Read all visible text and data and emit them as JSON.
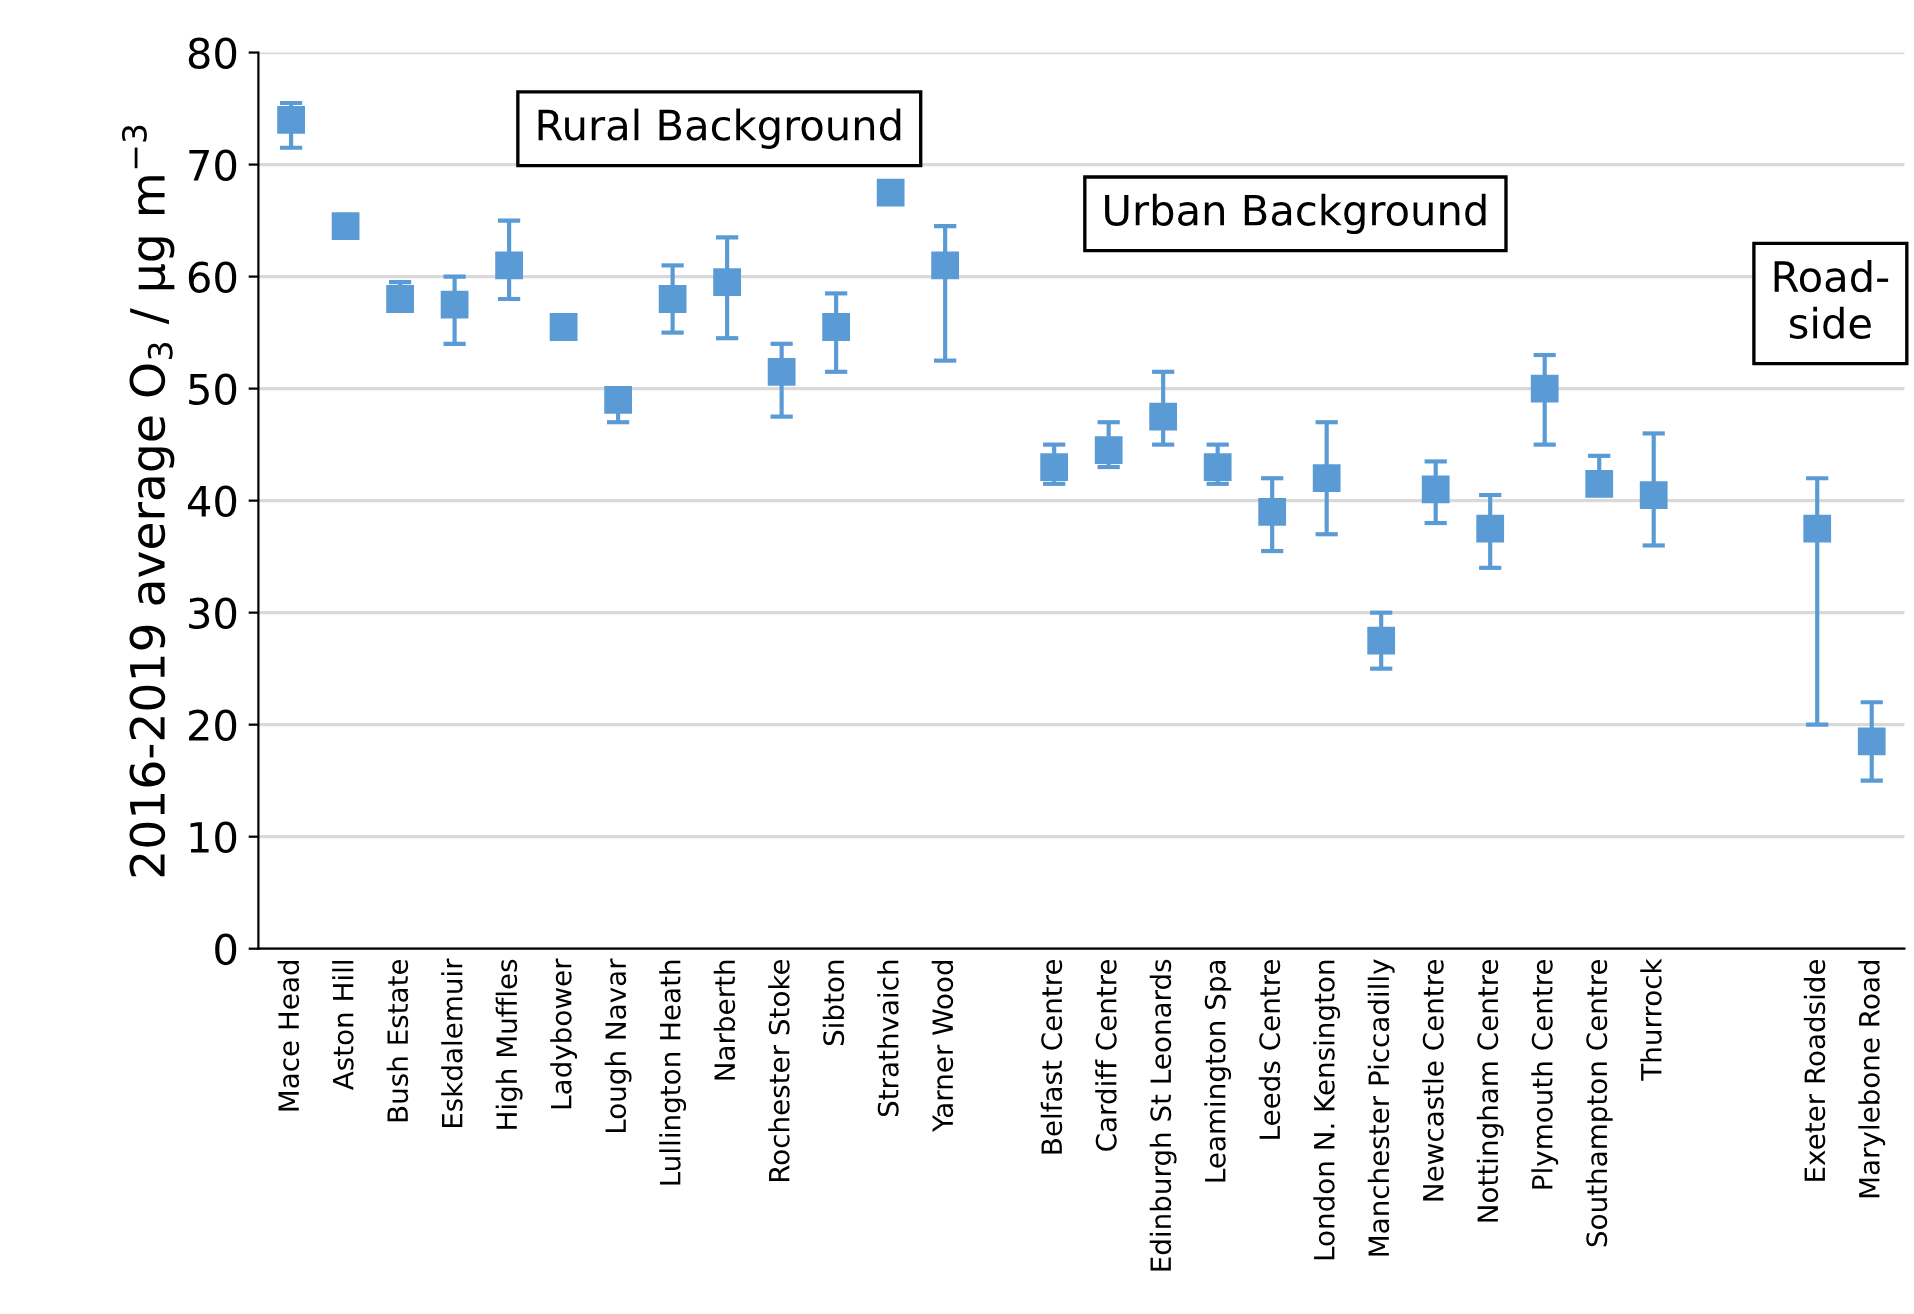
{
  "chart_data": {
    "type": "scatter",
    "ylabel": "2016-2019 average O$_{3}$ / µg m$^{−3}$",
    "categories": [
      "Mace Head",
      "Aston Hill",
      "Bush Estate",
      "Eskdalemuir",
      "High Muffles",
      "Ladybower",
      "Lough Navar",
      "Lullington Heath",
      "Narberth",
      "Rochester Stoke",
      "Sibton",
      "Strathvaich",
      "Yarner Wood",
      null,
      "Belfast Centre",
      "Cardiff Centre",
      "Edinburgh St Leonards",
      "Leamington Spa",
      "Leeds Centre",
      "London N. Kensington",
      "Manchester Piccadilly",
      "Newcastle Centre",
      "Nottingham Centre",
      "Plymouth Centre",
      "Southampton Centre",
      "Thurrock",
      null,
      null,
      "Exeter Roadside",
      "Marylebone Road"
    ],
    "series": [
      {
        "color": "#5b9bd5",
        "values": [
          74,
          64.5,
          58,
          57.5,
          61,
          55.5,
          49,
          58,
          59.5,
          51.5,
          55.5,
          67.5,
          61,
          null,
          43,
          44.5,
          47.5,
          43,
          39,
          42,
          27.5,
          41,
          37.5,
          50,
          41.5,
          40.5,
          null,
          null,
          37.5,
          18.5
        ],
        "errors": [
          [
            71.5,
            75.5
          ],
          [
            63.5,
            65.5
          ],
          [
            57,
            59.5
          ],
          [
            54,
            60
          ],
          [
            58,
            65
          ],
          [
            54.5,
            55.5
          ],
          [
            47,
            50
          ],
          [
            55,
            61
          ],
          [
            54.5,
            63.5
          ],
          [
            47.5,
            54
          ],
          [
            51.5,
            58.5
          ],
          null,
          [
            52.5,
            64.5
          ],
          null,
          [
            41.5,
            45
          ],
          [
            43,
            47
          ],
          [
            45,
            51.5
          ],
          [
            41.5,
            45
          ],
          [
            35.5,
            42
          ],
          [
            37,
            47
          ],
          [
            25,
            30
          ],
          [
            38,
            43.5
          ],
          [
            34,
            40.5
          ],
          [
            45,
            53
          ],
          [
            40.5,
            44
          ],
          [
            36,
            46
          ],
          null,
          null,
          [
            20,
            42
          ],
          [
            15,
            22
          ]
        ]
      }
    ],
    "annotations": [
      "Rural Background",
      "Urban Background",
      "Road-\nside"
    ],
    "ylim": [
      0,
      80
    ],
    "yticks": [
      0,
      10,
      20,
      30,
      40,
      50,
      60,
      70,
      80
    ],
    "grid": "y",
    "marker": "square",
    "legend": false
  }
}
